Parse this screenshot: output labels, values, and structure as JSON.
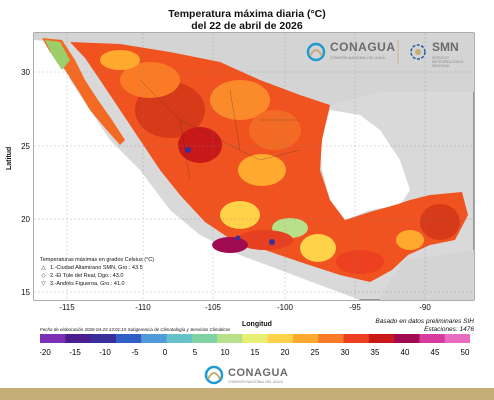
{
  "header": {
    "title_line1": "Temperatura máxima diaria (°C)",
    "title_line2": "del 22 de abril de 2026"
  },
  "axes": {
    "ylabel": "Latitud",
    "xlabel": "Longitud",
    "lat_ticks": [
      "30",
      "25",
      "20",
      "15"
    ],
    "lon_ticks": [
      "-115",
      "-110",
      "-105",
      "-100",
      "-95",
      "-90"
    ]
  },
  "logos": {
    "conagua_name": "CONAGUA",
    "conagua_sub": "COMISIÓN NACIONAL DEL AGUA",
    "smn_name": "SMN",
    "smn_sub": "SERVICIO METEOROLÓGICO NACIONAL"
  },
  "legend": {
    "heading": "Temperaturas máximas en grados Celsius (°C)",
    "items": [
      {
        "symbol": "△",
        "text": "1.-Ciudad Altamirano SMN, Gro.: 43.5"
      },
      {
        "symbol": "◇",
        "text": "2.-El Tule del Real, Dgo.: 43.0"
      },
      {
        "symbol": "▽",
        "text": "3.-Andrés Figueroa, Gro.: 41.0"
      }
    ]
  },
  "notes": {
    "based_on": "Basado en datos preliminares SIH",
    "stations": "Estaciones: 1476",
    "elaboration": "Fecha de elaboración 2026-04-23 13:01:15 Subgerencia de Climatología y Servicios Climáticos"
  },
  "colorbar": {
    "labels": [
      "-20",
      "-15",
      "-10",
      "-5",
      "0",
      "5",
      "10",
      "15",
      "20",
      "25",
      "30",
      "35",
      "40",
      "45",
      "50"
    ],
    "colors": [
      "#7a2fb5",
      "#4a1e8c",
      "#3a2f9a",
      "#2f5fc4",
      "#4f9bd9",
      "#66c2c9",
      "#7fd3a3",
      "#b8e08a",
      "#e8ef72",
      "#ffd24a",
      "#ffaa2e",
      "#fb7a25",
      "#ec4020",
      "#c81818",
      "#a00a50",
      "#d83aa0",
      "#e86cc0"
    ]
  },
  "footer": {
    "name": "CONAGUA",
    "sub": "COMISIÓN NACIONAL DEL AGUA"
  }
}
